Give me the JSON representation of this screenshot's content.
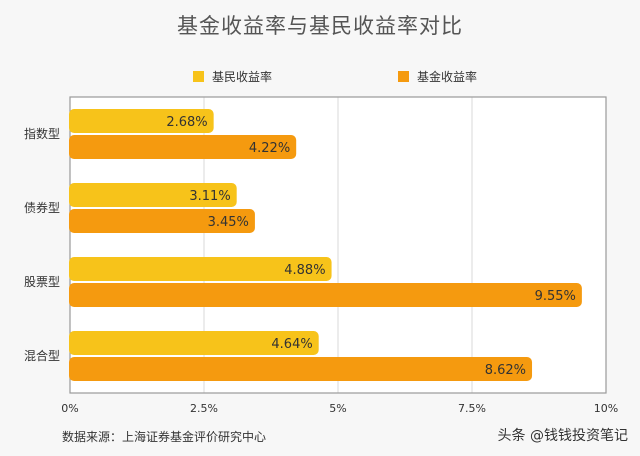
{
  "title": "基金收益率与基民收益率对比",
  "source": "数据来源：上海证券基金评价研究中心",
  "watermark": "头条 @钱钱投资笔记",
  "colors": {
    "investor": "#f7c31a",
    "fund": "#f59a0f",
    "grid": "#d9d9d9",
    "frame": "#9a9a9a",
    "plot_bg": "#ffffff",
    "page_bg": "#f7f7f7"
  },
  "chart_data": {
    "type": "bar",
    "orientation": "horizontal",
    "title": "基金收益率与基民收益率对比",
    "categories": [
      "指数型",
      "债券型",
      "股票型",
      "混合型"
    ],
    "series": [
      {
        "name": "基民收益率",
        "values": [
          2.68,
          3.11,
          4.88,
          4.64
        ],
        "labels": [
          "2.68%",
          "3.11%",
          "4.88%",
          "4.64%"
        ]
      },
      {
        "name": "基金收益率",
        "values": [
          4.22,
          3.45,
          9.55,
          8.62
        ],
        "labels": [
          "4.22%",
          "3.45%",
          "9.55%",
          "8.62%"
        ]
      }
    ],
    "xlim": [
      0,
      10
    ],
    "x_ticks": [
      0,
      2.5,
      5,
      7.5,
      10
    ],
    "x_tick_labels": [
      "0%",
      "2.5%",
      "5%",
      "7.5%",
      "10%"
    ],
    "grid": true,
    "legend": "top"
  }
}
